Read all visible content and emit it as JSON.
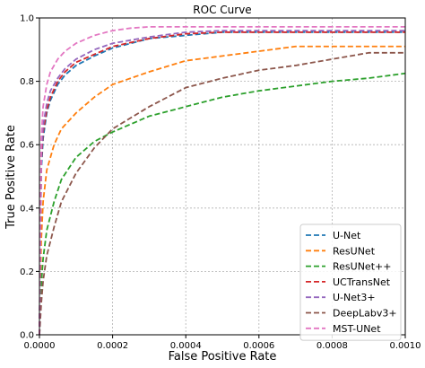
{
  "chart_data": {
    "type": "line",
    "title": "ROC Curve",
    "xlabel": "False Positive Rate",
    "ylabel": "True Positive Rate",
    "xlim": [
      0,
      0.001
    ],
    "ylim": [
      0,
      1
    ],
    "xticks": [
      "0.0000",
      "0.0002",
      "0.0004",
      "0.0006",
      "0.0008",
      "0.0010"
    ],
    "yticks": [
      "0.0",
      "0.2",
      "0.4",
      "0.6",
      "0.8",
      "1.0"
    ],
    "grid": true,
    "legend_position": "bottom-right",
    "line_style": "dashed",
    "series": [
      {
        "name": "U-Net",
        "color": "#1f77b4",
        "x": [
          0,
          5e-06,
          1e-05,
          2e-05,
          3e-05,
          5e-05,
          7e-05,
          0.0001,
          0.00015,
          0.0002,
          0.0003,
          0.0004,
          0.0005,
          0.0006,
          0.0008,
          0.001
        ],
        "y": [
          0,
          0.52,
          0.62,
          0.7,
          0.74,
          0.79,
          0.82,
          0.85,
          0.88,
          0.905,
          0.935,
          0.945,
          0.955,
          0.955,
          0.955,
          0.955
        ]
      },
      {
        "name": "ResUNet",
        "color": "#ff7f0e",
        "x": [
          0,
          5e-06,
          1e-05,
          2e-05,
          4e-05,
          6e-05,
          0.0001,
          0.00015,
          0.0002,
          0.0003,
          0.0004,
          0.0005,
          0.0006,
          0.0007,
          0.0008,
          0.001
        ],
        "y": [
          0,
          0.3,
          0.42,
          0.52,
          0.6,
          0.65,
          0.7,
          0.75,
          0.79,
          0.83,
          0.865,
          0.88,
          0.895,
          0.91,
          0.91,
          0.91
        ]
      },
      {
        "name": "ResUNet++",
        "color": "#2ca02c",
        "x": [
          0,
          5e-06,
          1e-05,
          2e-05,
          4e-05,
          6e-05,
          0.0001,
          0.00015,
          0.0002,
          0.0003,
          0.0004,
          0.0005,
          0.0006,
          0.0007,
          0.0008,
          0.0009,
          0.001
        ],
        "y": [
          0,
          0.16,
          0.24,
          0.33,
          0.42,
          0.49,
          0.56,
          0.61,
          0.64,
          0.69,
          0.72,
          0.75,
          0.77,
          0.785,
          0.8,
          0.81,
          0.825
        ]
      },
      {
        "name": "UCTransNet",
        "color": "#d62728",
        "x": [
          0,
          5e-06,
          1e-05,
          2e-05,
          3e-05,
          5e-05,
          7e-05,
          0.0001,
          0.00015,
          0.0002,
          0.0003,
          0.0004,
          0.0005,
          0.0006,
          0.0008,
          0.001
        ],
        "y": [
          0,
          0.55,
          0.64,
          0.71,
          0.75,
          0.8,
          0.83,
          0.86,
          0.885,
          0.91,
          0.935,
          0.95,
          0.955,
          0.955,
          0.955,
          0.955
        ]
      },
      {
        "name": "U-Net3+",
        "color": "#9467bd",
        "x": [
          0,
          5e-06,
          1e-05,
          2e-05,
          3e-05,
          5e-05,
          7e-05,
          0.0001,
          0.00015,
          0.0002,
          0.0003,
          0.0004,
          0.0005,
          0.0006,
          0.0008,
          0.001
        ],
        "y": [
          0,
          0.57,
          0.66,
          0.73,
          0.77,
          0.81,
          0.84,
          0.87,
          0.9,
          0.92,
          0.94,
          0.955,
          0.96,
          0.96,
          0.96,
          0.96
        ]
      },
      {
        "name": "DeepLabv3+",
        "color": "#8c564b",
        "x": [
          0,
          5e-06,
          1e-05,
          2e-05,
          4e-05,
          6e-05,
          0.0001,
          0.00015,
          0.0002,
          0.0003,
          0.0004,
          0.0005,
          0.0006,
          0.0007,
          0.0008,
          0.0009,
          0.001
        ],
        "y": [
          0,
          0.1,
          0.17,
          0.25,
          0.34,
          0.42,
          0.51,
          0.59,
          0.65,
          0.72,
          0.78,
          0.81,
          0.835,
          0.85,
          0.87,
          0.89,
          0.89
        ]
      },
      {
        "name": "MST-UNet",
        "color": "#e377c2",
        "x": [
          0,
          5e-06,
          1e-05,
          2e-05,
          3e-05,
          5e-05,
          7e-05,
          0.0001,
          0.00015,
          0.0002,
          0.00025,
          0.0003,
          0.0004,
          0.0006,
          0.0008,
          0.001
        ],
        "y": [
          0,
          0.62,
          0.72,
          0.79,
          0.83,
          0.87,
          0.895,
          0.92,
          0.945,
          0.96,
          0.968,
          0.972,
          0.972,
          0.972,
          0.972,
          0.972
        ]
      }
    ]
  }
}
